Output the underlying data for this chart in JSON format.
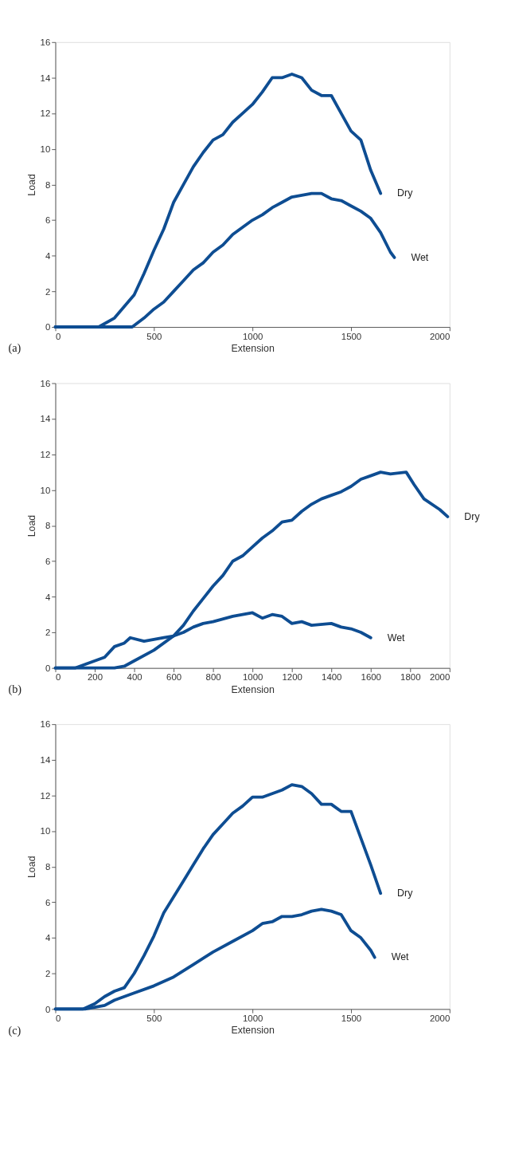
{
  "chart_data": [
    {
      "type": "line",
      "xlabel": "Extension",
      "ylabel": "Load",
      "xlim": [
        0,
        2000
      ],
      "xticks": [
        0,
        500,
        1000,
        1500,
        2000
      ],
      "ylim": [
        0,
        16
      ],
      "yticks": [
        0,
        2,
        4,
        6,
        8,
        10,
        12,
        14,
        16
      ],
      "grid": false,
      "legend": false,
      "marker": "none",
      "line_style": "solid",
      "annotations": [
        "(a)"
      ],
      "series": [
        {
          "name": "Dry",
          "color": "#0e4d92",
          "x": [
            0,
            220,
            300,
            400,
            450,
            500,
            550,
            600,
            650,
            700,
            750,
            800,
            850,
            900,
            950,
            1000,
            1050,
            1100,
            1150,
            1200,
            1250,
            1300,
            1350,
            1400,
            1450,
            1500,
            1550,
            1600,
            1650
          ],
          "values": [
            0,
            0,
            0.5,
            1.8,
            3,
            4.3,
            5.5,
            7,
            8,
            9,
            9.8,
            10.5,
            10.8,
            11.5,
            12,
            12.5,
            13.2,
            14,
            14,
            14.2,
            14,
            13.3,
            13,
            13,
            12,
            11,
            10.5,
            8.8,
            7.5
          ]
        },
        {
          "name": "Wet",
          "color": "#0e4d92",
          "x": [
            0,
            390,
            450,
            500,
            550,
            600,
            650,
            700,
            750,
            800,
            850,
            900,
            950,
            1000,
            1050,
            1100,
            1150,
            1200,
            1250,
            1300,
            1350,
            1400,
            1450,
            1500,
            1550,
            1600,
            1650,
            1700,
            1720
          ],
          "values": [
            0,
            0,
            0.5,
            1,
            1.4,
            2,
            2.6,
            3.2,
            3.6,
            4.2,
            4.6,
            5.2,
            5.6,
            6,
            6.3,
            6.7,
            7,
            7.3,
            7.4,
            7.5,
            7.5,
            7.2,
            7.1,
            6.8,
            6.5,
            6.1,
            5.3,
            4.2,
            3.9
          ]
        }
      ]
    },
    {
      "type": "line",
      "xlabel": "Extension",
      "ylabel": "Load",
      "xlim": [
        0,
        2000
      ],
      "xticks": [
        0,
        200,
        400,
        600,
        800,
        1000,
        1200,
        1400,
        1600,
        1800,
        2000
      ],
      "ylim": [
        0,
        16
      ],
      "yticks": [
        0,
        2,
        4,
        6,
        8,
        10,
        12,
        14,
        16
      ],
      "grid": false,
      "legend": false,
      "marker": "none",
      "line_style": "solid",
      "annotations": [
        "(b)"
      ],
      "series": [
        {
          "name": "Dry",
          "color": "#0e4d92",
          "x": [
            0,
            300,
            350,
            400,
            500,
            600,
            650,
            700,
            750,
            800,
            850,
            900,
            950,
            1000,
            1050,
            1100,
            1150,
            1200,
            1250,
            1300,
            1350,
            1400,
            1450,
            1500,
            1550,
            1600,
            1650,
            1700,
            1780,
            1820,
            1870,
            1950,
            1990
          ],
          "values": [
            0,
            0,
            0.1,
            0.4,
            1,
            1.8,
            2.4,
            3.2,
            3.9,
            4.6,
            5.2,
            6,
            6.3,
            6.8,
            7.3,
            7.7,
            8.2,
            8.3,
            8.8,
            9.2,
            9.5,
            9.7,
            9.9,
            10.2,
            10.6,
            10.8,
            11,
            10.9,
            11,
            10.3,
            9.5,
            8.9,
            8.5
          ]
        },
        {
          "name": "Wet",
          "color": "#0e4d92",
          "x": [
            0,
            100,
            150,
            200,
            250,
            300,
            350,
            380,
            450,
            500,
            550,
            600,
            650,
            700,
            750,
            800,
            900,
            1000,
            1050,
            1100,
            1150,
            1200,
            1250,
            1300,
            1400,
            1450,
            1500,
            1550,
            1600
          ],
          "values": [
            0,
            0,
            0.2,
            0.4,
            0.6,
            1.2,
            1.4,
            1.7,
            1.5,
            1.6,
            1.7,
            1.8,
            2,
            2.3,
            2.5,
            2.6,
            2.9,
            3.1,
            2.8,
            3,
            2.9,
            2.5,
            2.6,
            2.4,
            2.5,
            2.3,
            2.2,
            2,
            1.7
          ]
        }
      ]
    },
    {
      "type": "line",
      "xlabel": "Extension",
      "ylabel": "Load",
      "xlim": [
        0,
        2000
      ],
      "xticks": [
        0,
        500,
        1000,
        1500,
        2000
      ],
      "ylim": [
        0,
        16
      ],
      "yticks": [
        0,
        2,
        4,
        6,
        8,
        10,
        12,
        14,
        16
      ],
      "grid": false,
      "legend": false,
      "marker": "none",
      "line_style": "solid",
      "annotations": [
        "(c)"
      ],
      "series": [
        {
          "name": "Dry",
          "color": "#0e4d92",
          "x": [
            0,
            140,
            200,
            250,
            300,
            350,
            400,
            450,
            500,
            550,
            600,
            650,
            700,
            750,
            800,
            850,
            900,
            950,
            1000,
            1050,
            1100,
            1150,
            1200,
            1250,
            1300,
            1350,
            1400,
            1450,
            1500,
            1550,
            1600,
            1650
          ],
          "values": [
            0,
            0,
            0.3,
            0.7,
            1,
            1.2,
            2,
            3,
            4.1,
            5.4,
            6.3,
            7.2,
            8.1,
            9,
            9.8,
            10.4,
            11,
            11.4,
            11.9,
            11.9,
            12.1,
            12.3,
            12.6,
            12.5,
            12.1,
            11.5,
            11.5,
            11.1,
            11.1,
            9.6,
            8.1,
            6.5
          ]
        },
        {
          "name": "Wet",
          "color": "#0e4d92",
          "x": [
            0,
            150,
            200,
            250,
            300,
            400,
            500,
            600,
            700,
            800,
            900,
            1000,
            1050,
            1100,
            1150,
            1200,
            1250,
            1300,
            1350,
            1400,
            1450,
            1500,
            1550,
            1600,
            1620
          ],
          "values": [
            0,
            0,
            0.1,
            0.2,
            0.5,
            0.9,
            1.3,
            1.8,
            2.5,
            3.2,
            3.8,
            4.4,
            4.8,
            4.9,
            5.2,
            5.2,
            5.3,
            5.5,
            5.6,
            5.5,
            5.3,
            4.4,
            4,
            3.3,
            2.9
          ]
        }
      ]
    }
  ]
}
